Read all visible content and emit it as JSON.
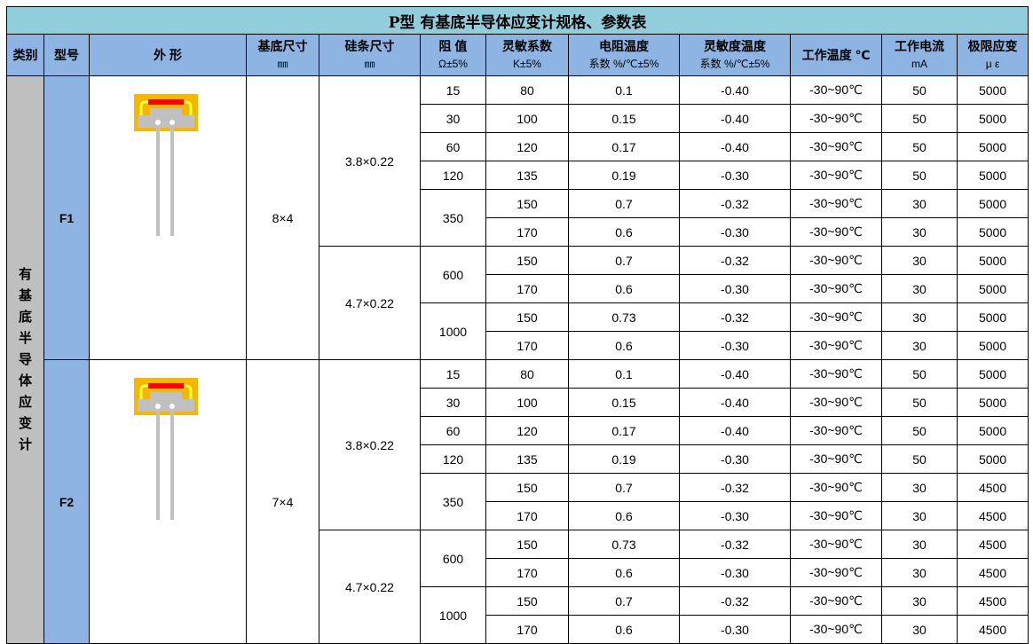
{
  "title": "P型  有基底半导体应变计规格、参数表",
  "headers": [
    {
      "l1": "类别",
      "l2": ""
    },
    {
      "l1": "型号",
      "l2": ""
    },
    {
      "l1": "外  形",
      "l2": ""
    },
    {
      "l1": "基底尺寸",
      "l2": "㎜"
    },
    {
      "l1": "硅条尺寸",
      "l2": "㎜"
    },
    {
      "l1": "阻 值",
      "l2": "Ω±5%"
    },
    {
      "l1": "灵敏系数",
      "l2": "K±5%"
    },
    {
      "l1": "电阻温度",
      "l2": "系数 %/℃±5%"
    },
    {
      "l1": "灵敏度温度",
      "l2": "系数 %/℃±5%"
    },
    {
      "l1": "工作温度 ℃",
      "l2": ""
    },
    {
      "l1": "工作电流",
      "l2": "mA"
    },
    {
      "l1": "极限应变",
      "l2": "μ ε"
    }
  ],
  "category": "有基底 半导体应变计",
  "temp": "-30~90℃",
  "colors": {
    "title_bg": "#92cddc",
    "header_bg": "#8db4e2",
    "category_bg": "#bfbfbf",
    "gauge_substrate": "#f5b800",
    "gauge_strip": "#ff0000"
  },
  "models": [
    {
      "name": "F1",
      "substrate": "8×4",
      "strips": [
        {
          "size": "3.8×0.22",
          "res": [
            {
              "r": "15",
              "rows": [
                [
                  "80",
                  "0.1",
                  "-0.40",
                  "50",
                  "5000"
                ]
              ]
            },
            {
              "r": "30",
              "rows": [
                [
                  "100",
                  "0.15",
                  "-0.40",
                  "50",
                  "5000"
                ]
              ]
            },
            {
              "r": "60",
              "rows": [
                [
                  "120",
                  "0.17",
                  "-0.40",
                  "50",
                  "5000"
                ]
              ]
            },
            {
              "r": "120",
              "rows": [
                [
                  "135",
                  "0.19",
                  "-0.30",
                  "50",
                  "5000"
                ]
              ]
            },
            {
              "r": "350",
              "rows": [
                [
                  "150",
                  "0.7",
                  "-0.32",
                  "30",
                  "5000"
                ],
                [
                  "170",
                  "0.6",
                  "-0.30",
                  "30",
                  "5000"
                ]
              ]
            }
          ]
        },
        {
          "size": "4.7×0.22",
          "res": [
            {
              "r": "600",
              "rows": [
                [
                  "150",
                  "0.7",
                  "-0.32",
                  "30",
                  "5000"
                ],
                [
                  "170",
                  "0.6",
                  "-0.30",
                  "30",
                  "5000"
                ]
              ]
            },
            {
              "r": "1000",
              "rows": [
                [
                  "150",
                  "0.73",
                  "-0.32",
                  "30",
                  "5000"
                ],
                [
                  "170",
                  "0.6",
                  "-0.30",
                  "30",
                  "5000"
                ]
              ]
            }
          ]
        }
      ]
    },
    {
      "name": "F2",
      "substrate": "7×4",
      "strips": [
        {
          "size": "3.8×0.22",
          "res": [
            {
              "r": "15",
              "rows": [
                [
                  "80",
                  "0.1",
                  "-0.40",
                  "50",
                  "5000"
                ]
              ]
            },
            {
              "r": "30",
              "rows": [
                [
                  "100",
                  "0.15",
                  "-0.40",
                  "50",
                  "5000"
                ]
              ]
            },
            {
              "r": "60",
              "rows": [
                [
                  "120",
                  "0.17",
                  "-0.40",
                  "50",
                  "5000"
                ]
              ]
            },
            {
              "r": "120",
              "rows": [
                [
                  "135",
                  "0.19",
                  "-0.30",
                  "50",
                  "5000"
                ]
              ]
            },
            {
              "r": "350",
              "rows": [
                [
                  "150",
                  "0.7",
                  "-0.32",
                  "30",
                  "4500"
                ],
                [
                  "170",
                  "0.6",
                  "-0.30",
                  "30",
                  "4500"
                ]
              ]
            }
          ]
        },
        {
          "size": "4.7×0.22",
          "res": [
            {
              "r": "600",
              "rows": [
                [
                  "150",
                  "0.73",
                  "-0.32",
                  "30",
                  "4500"
                ],
                [
                  "170",
                  "0.6",
                  "-0.30",
                  "30",
                  "4500"
                ]
              ]
            },
            {
              "r": "1000",
              "rows": [
                [
                  "150",
                  "0.7",
                  "-0.32",
                  "30",
                  "4500"
                ],
                [
                  "170",
                  "0.6",
                  "-0.30",
                  "30",
                  "4500"
                ]
              ]
            }
          ]
        }
      ]
    }
  ]
}
